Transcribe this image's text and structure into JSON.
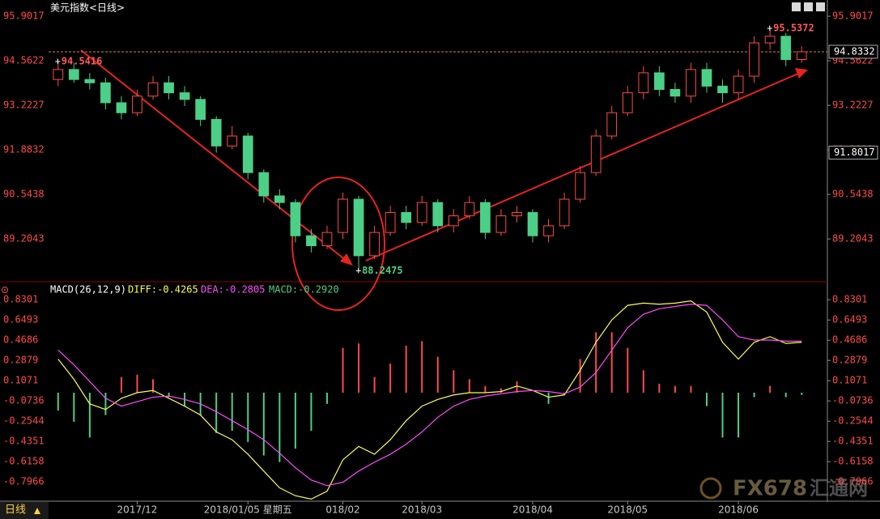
{
  "chart_data": [
    {
      "type": "candlestick",
      "title": "美元指数<日线>",
      "categories": [
        null,
        null,
        null,
        null,
        null,
        "2017/12",
        null,
        null,
        null,
        null,
        null,
        null,
        "2018/01/05 星期五",
        null,
        null,
        null,
        null,
        null,
        "018/02",
        null,
        null,
        null,
        null,
        "2018/03",
        null,
        null,
        null,
        null,
        null,
        null,
        "2018/04",
        null,
        null,
        null,
        null,
        null,
        "2018/05",
        null,
        null,
        null,
        null,
        null,
        null,
        "2018/06",
        null,
        null,
        null,
        null
      ],
      "open": [
        94.0,
        94.3,
        94.0,
        93.9,
        93.3,
        93.0,
        93.5,
        93.9,
        93.6,
        93.4,
        92.8,
        92.0,
        92.3,
        91.2,
        90.5,
        90.3,
        89.3,
        89.0,
        89.4,
        90.4,
        88.7,
        89.4,
        90.0,
        89.7,
        90.3,
        89.6,
        89.9,
        90.3,
        89.4,
        89.9,
        90.0,
        89.3,
        89.6,
        90.4,
        91.2,
        92.3,
        93.0,
        93.6,
        94.2,
        93.7,
        93.5,
        94.3,
        93.8,
        93.6,
        94.1,
        95.1,
        95.3,
        94.6
      ],
      "high": [
        94.5416,
        94.5,
        94.2,
        94.05,
        93.5,
        93.7,
        94.1,
        94.1,
        93.8,
        93.5,
        92.9,
        92.6,
        92.4,
        91.3,
        90.7,
        90.4,
        89.5,
        89.6,
        90.6,
        90.5,
        89.6,
        90.2,
        90.2,
        90.5,
        90.4,
        90.1,
        90.5,
        90.4,
        90.1,
        90.2,
        90.1,
        89.8,
        90.6,
        91.4,
        92.5,
        93.2,
        93.8,
        94.4,
        94.4,
        93.9,
        94.5,
        94.5,
        94.0,
        94.3,
        95.3,
        95.5372,
        95.4,
        95.0
      ],
      "low": [
        93.8,
        93.9,
        93.7,
        93.1,
        92.8,
        92.9,
        93.4,
        93.4,
        93.2,
        92.6,
        91.8,
        91.9,
        91.0,
        90.3,
        90.1,
        89.1,
        88.8,
        88.9,
        89.2,
        88.2475,
        88.6,
        89.3,
        89.5,
        89.6,
        89.4,
        89.4,
        89.8,
        89.2,
        89.3,
        89.7,
        89.1,
        89.1,
        89.5,
        90.3,
        91.1,
        92.2,
        92.9,
        93.4,
        93.5,
        93.3,
        93.3,
        93.6,
        93.3,
        93.4,
        93.9,
        94.9,
        94.4,
        94.5
      ],
      "close": [
        94.3,
        94.0,
        93.9,
        93.3,
        93.0,
        93.5,
        93.9,
        93.6,
        93.4,
        92.8,
        92.0,
        92.3,
        91.2,
        90.5,
        90.3,
        89.3,
        89.0,
        89.4,
        90.4,
        88.7,
        89.4,
        90.0,
        89.7,
        90.3,
        89.6,
        89.9,
        90.3,
        89.4,
        89.9,
        90.0,
        89.3,
        89.6,
        90.4,
        91.2,
        92.3,
        93.0,
        93.6,
        94.2,
        93.7,
        93.5,
        94.3,
        93.8,
        93.6,
        94.1,
        95.1,
        95.3,
        94.6,
        94.8332
      ],
      "up_color": "#ff4a4a",
      "down_color": "#4ccf86",
      "annotations": [
        94.5416,
        95.5372,
        88.2475
      ],
      "price_marker": 91.8017,
      "ylim": [
        87.99,
        96.39
      ],
      "yticks": [
        95.9017,
        94.5622,
        93.2227,
        91.8832,
        90.5438,
        89.2043
      ]
    },
    {
      "type": "macd",
      "title": "MACD(26,12,9)",
      "series": [
        {
          "name": "DIFF",
          "legend_label": "DIFF:-0.4265",
          "color": "#ffff4a",
          "values": [
            0.3,
            0.12,
            -0.1,
            -0.15,
            -0.05,
            0.0,
            0.02,
            -0.05,
            -0.12,
            -0.2,
            -0.35,
            -0.42,
            -0.55,
            -0.7,
            -0.85,
            -0.92,
            -0.95,
            -0.88,
            -0.6,
            -0.48,
            -0.55,
            -0.42,
            -0.25,
            -0.12,
            -0.06,
            -0.02,
            0.0,
            0.0,
            0.01,
            0.06,
            0.02,
            -0.04,
            -0.02,
            0.2,
            0.45,
            0.65,
            0.78,
            0.8,
            0.79,
            0.8,
            0.82,
            0.72,
            0.45,
            0.3,
            0.45,
            0.5,
            0.44,
            0.45
          ]
        },
        {
          "name": "DEA",
          "legend_label": "DEA:-0.2805",
          "color": "#ff4aff",
          "values": [
            0.38,
            0.25,
            0.1,
            -0.05,
            -0.12,
            -0.08,
            -0.04,
            -0.03,
            -0.06,
            -0.1,
            -0.17,
            -0.25,
            -0.33,
            -0.42,
            -0.54,
            -0.67,
            -0.78,
            -0.83,
            -0.8,
            -0.7,
            -0.62,
            -0.55,
            -0.46,
            -0.35,
            -0.22,
            -0.12,
            -0.06,
            -0.03,
            -0.01,
            0.01,
            0.02,
            0.01,
            -0.01,
            0.05,
            0.18,
            0.38,
            0.58,
            0.7,
            0.75,
            0.77,
            0.79,
            0.78,
            0.65,
            0.5,
            0.47,
            0.47,
            0.46,
            0.46
          ]
        },
        {
          "name": "MACD",
          "legend_label": "MACD:-0.2920",
          "color": "#4ccf86",
          "kind": "bar",
          "up_color": "#ff4a4a",
          "values": [
            -0.16,
            -0.26,
            -0.4,
            -0.2,
            0.14,
            0.16,
            0.12,
            -0.04,
            -0.12,
            -0.2,
            -0.36,
            -0.34,
            -0.44,
            -0.56,
            -0.62,
            -0.5,
            -0.34,
            -0.1,
            0.4,
            0.44,
            0.14,
            0.26,
            0.42,
            0.46,
            0.32,
            0.2,
            0.12,
            0.06,
            0.04,
            0.1,
            0.0,
            -0.1,
            -0.02,
            0.3,
            0.54,
            0.54,
            0.4,
            0.2,
            0.08,
            0.06,
            0.06,
            -0.12,
            -0.4,
            -0.4,
            -0.04,
            0.06,
            -0.04,
            -0.02
          ]
        }
      ],
      "ylim": [
        -0.94,
        0.94
      ],
      "yticks": [
        0.8301,
        0.6493,
        0.4686,
        0.2879,
        0.1071,
        -0.0736,
        -0.2544,
        -0.4351,
        -0.6158,
        -0.7966
      ]
    }
  ],
  "footer": {
    "period": "日线",
    "watermark_brand": "FX678",
    "watermark_name": "汇通网"
  }
}
